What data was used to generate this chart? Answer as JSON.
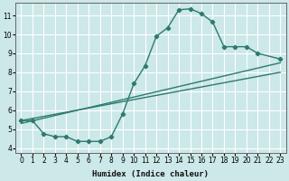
{
  "xlabel": "Humidex (Indice chaleur)",
  "bg_color": "#cce8e8",
  "grid_color": "#aad4d4",
  "line_color": "#2d7a6e",
  "xlim": [
    -0.5,
    23.5
  ],
  "ylim": [
    3.75,
    11.65
  ],
  "xticks": [
    0,
    1,
    2,
    3,
    4,
    5,
    6,
    7,
    8,
    9,
    10,
    11,
    12,
    13,
    14,
    15,
    16,
    17,
    18,
    19,
    20,
    21,
    22,
    23
  ],
  "yticks": [
    4,
    5,
    6,
    7,
    8,
    9,
    10,
    11
  ],
  "curve1_x": [
    0,
    1,
    2,
    3,
    4,
    5,
    6,
    7,
    8,
    9,
    10,
    11,
    12,
    13,
    14,
    15,
    16,
    17,
    18,
    19,
    20,
    21,
    23
  ],
  "curve1_y": [
    5.45,
    5.45,
    4.75,
    4.6,
    4.6,
    4.35,
    4.35,
    4.35,
    4.6,
    5.8,
    7.4,
    8.35,
    9.9,
    10.35,
    11.3,
    11.35,
    11.1,
    10.65,
    9.35,
    9.35,
    9.35,
    9.0,
    8.7
  ],
  "curve2_x": [
    0,
    23
  ],
  "curve2_y": [
    5.45,
    8.0
  ],
  "curve3_x": [
    0,
    23
  ],
  "curve3_y": [
    5.3,
    8.5
  ],
  "xlabel_fontsize": 6.5,
  "tick_fontsize": 5.5,
  "linewidth": 1.0,
  "markersize": 2.3
}
